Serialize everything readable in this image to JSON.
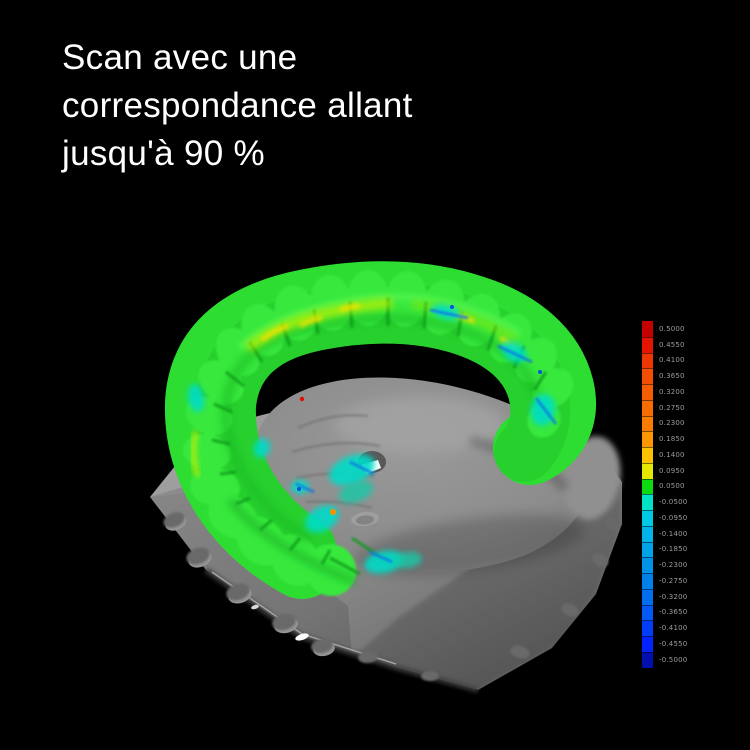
{
  "heading": {
    "lines": [
      "Scan avec une",
      "correspondance allant",
      "jusqu'à 90 %"
    ],
    "color": "#ffffff"
  },
  "viewer": {
    "content": "3D dental plaster cast scan with deviation heatmap on the tooth arch",
    "palette": {
      "background": "#000000",
      "base_gray": "#8b8b8b",
      "palate_gray": "#8c8c8c",
      "match_green": "#2edd31",
      "tooth_green_light": "#38e83c",
      "deviation_yellow": "#ffe000",
      "deviation_yellow_green": "#c0ef00",
      "deviation_cyan": "#00dcc8",
      "deviation_blue": "#1174e6",
      "deviation_red": "#e01000",
      "deviation_orange": "#ff9000",
      "highlight_white": "#ffffff"
    }
  },
  "color_scale": {
    "entries": [
      {
        "label": "0.5000",
        "color": "#c40000"
      },
      {
        "label": "0.4550",
        "color": "#e31400"
      },
      {
        "label": "0.4100",
        "color": "#ee3600"
      },
      {
        "label": "0.3650",
        "color": "#f24d00"
      },
      {
        "label": "0.3200",
        "color": "#f55d00"
      },
      {
        "label": "0.2750",
        "color": "#f76b00"
      },
      {
        "label": "0.2300",
        "color": "#f97b00"
      },
      {
        "label": "0.1850",
        "color": "#fb9600"
      },
      {
        "label": "0.1400",
        "color": "#fdc100"
      },
      {
        "label": "0.0950",
        "color": "#e6e700"
      },
      {
        "label": "0.0500",
        "color": "#0cdb10"
      },
      {
        "label": "-0.0500",
        "color": "#00e2c6"
      },
      {
        "label": "-0.0950",
        "color": "#00c9e4"
      },
      {
        "label": "-0.1400",
        "color": "#00b3e8"
      },
      {
        "label": "-0.1850",
        "color": "#00a2e8"
      },
      {
        "label": "-0.2300",
        "color": "#0092e8"
      },
      {
        "label": "-0.2750",
        "color": "#0081ea"
      },
      {
        "label": "-0.3200",
        "color": "#006fee"
      },
      {
        "label": "-0.3650",
        "color": "#0059f2"
      },
      {
        "label": "-0.4100",
        "color": "#003df6"
      },
      {
        "label": "-0.4550",
        "color": "#0023ff"
      },
      {
        "label": "-0.5000",
        "color": "#000fae"
      }
    ]
  }
}
